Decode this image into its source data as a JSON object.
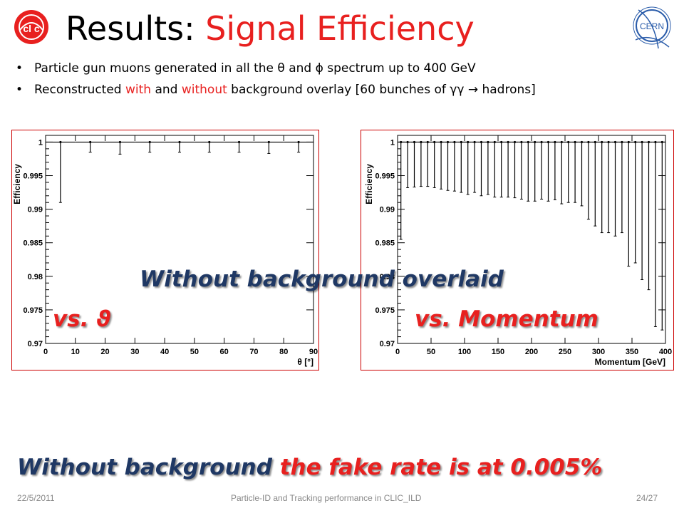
{
  "header": {
    "title_prefix": "Results: ",
    "title_accent": "Signal Efficiency",
    "left_logo_icon": "clic-logo-icon",
    "right_logo_icon": "cern-logo-icon",
    "right_logo_text": "CERN"
  },
  "bullets": [
    {
      "text": "Particle gun muons generated in all the θ and ϕ spectrum up to 400 GeV"
    },
    {
      "seg1": "Reconstructed ",
      "seg2": "with",
      "seg3": " and ",
      "seg4": "without",
      "seg5": " background overlay [60 bunches of γγ ",
      "arrow": "→",
      "seg6": " hadrons]"
    }
  ],
  "overlays": {
    "without_bkg": "Without background overlaid",
    "vs_theta": "vs. ϑ",
    "vs_momentum": "vs. Momentum"
  },
  "conclusion": {
    "part1": "Without background ",
    "part2": "the fake rate is at 0.005%"
  },
  "footer": {
    "date": "22/5/2011",
    "center": "Particle-ID and Tracking performance in CLIC_ILD",
    "page": "24/27"
  },
  "colors": {
    "accent_red": "#e8201f",
    "dark_blue": "#1f3864",
    "plot_frame_red": "#cc0000"
  },
  "chart_data": [
    {
      "type": "scatter",
      "title": "",
      "xlabel": "θ [°]",
      "ylabel": "Efficiency",
      "xlim": [
        0,
        90
      ],
      "ylim": [
        0.97,
        1.001
      ],
      "xticks": [
        0,
        10,
        20,
        30,
        40,
        50,
        60,
        70,
        80,
        90
      ],
      "xtick_labels": [
        "0",
        "10",
        "20",
        "30",
        "40",
        "50",
        "60",
        "70",
        "80",
        "90"
      ],
      "yticks": [
        0.97,
        0.975,
        0.98,
        0.985,
        0.99,
        0.995,
        1.0
      ],
      "ytick_labels": [
        "0.97",
        "0.975",
        "0.98",
        "0.985",
        "0.99",
        "0.995",
        "1"
      ],
      "x": [
        5,
        15,
        25,
        35,
        45,
        55,
        65,
        75,
        85
      ],
      "y": [
        1,
        1,
        1,
        1,
        1,
        1,
        1,
        1,
        1
      ],
      "err_low": [
        0.009,
        0.0015,
        0.0018,
        0.0015,
        0.0015,
        0.0015,
        0.0015,
        0.0017,
        0.0015
      ],
      "xerr": 5
    },
    {
      "type": "scatter",
      "title": "",
      "xlabel": "Momentum [GeV]",
      "ylabel": "Efficiency",
      "xlim": [
        0,
        400
      ],
      "ylim": [
        0.97,
        1.001
      ],
      "xticks": [
        0,
        50,
        100,
        150,
        200,
        250,
        300,
        350,
        400
      ],
      "xtick_labels": [
        "0",
        "50",
        "100",
        "150",
        "200",
        "250",
        "300",
        "350",
        "400"
      ],
      "yticks": [
        0.97,
        0.975,
        0.98,
        0.985,
        0.99,
        0.995,
        1.0
      ],
      "ytick_labels": [
        "0.97",
        "0.975",
        "0.98",
        "0.985",
        "0.99",
        "0.995",
        "1"
      ],
      "x": [
        5,
        15,
        25,
        35,
        45,
        55,
        65,
        75,
        85,
        95,
        105,
        115,
        125,
        135,
        145,
        155,
        165,
        175,
        185,
        195,
        205,
        215,
        225,
        235,
        245,
        255,
        265,
        275,
        285,
        295,
        305,
        315,
        325,
        335,
        345,
        355,
        365,
        375,
        385,
        395
      ],
      "y": [
        1,
        1,
        1,
        1,
        1,
        1,
        1,
        1,
        1,
        1,
        1,
        1,
        1,
        1,
        1,
        1,
        1,
        1,
        1,
        1,
        1,
        1,
        1,
        1,
        1,
        1,
        1,
        1,
        1,
        1,
        1,
        1,
        1,
        1,
        1,
        1,
        1,
        1,
        1,
        1
      ],
      "err_low": [
        0.0145,
        0.0068,
        0.0067,
        0.0066,
        0.0066,
        0.0068,
        0.007,
        0.0072,
        0.0073,
        0.0075,
        0.0078,
        0.0075,
        0.008,
        0.0078,
        0.0082,
        0.0082,
        0.0082,
        0.0083,
        0.0085,
        0.0088,
        0.0088,
        0.0085,
        0.0088,
        0.0086,
        0.0092,
        0.009,
        0.009,
        0.0095,
        0.0115,
        0.0125,
        0.0135,
        0.0135,
        0.014,
        0.0135,
        0.0185,
        0.018,
        0.0205,
        0.022,
        0.0275,
        0.028
      ],
      "xerr": 5
    }
  ]
}
